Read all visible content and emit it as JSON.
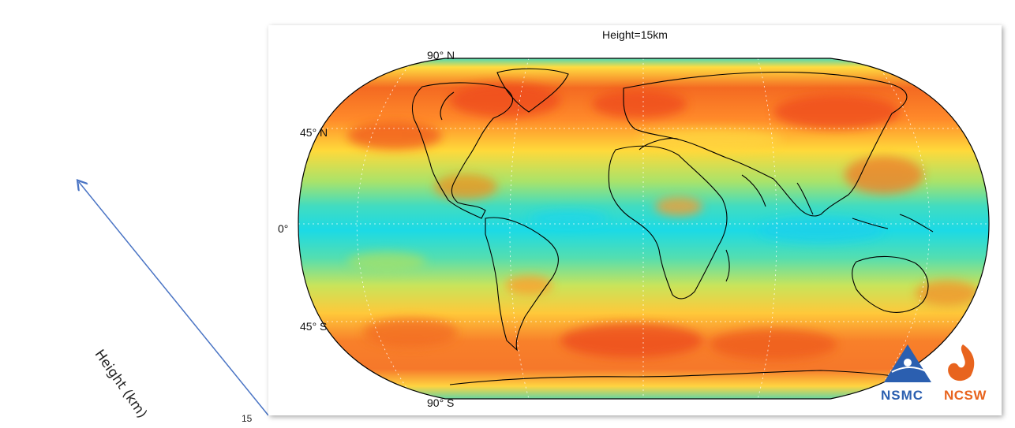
{
  "map": {
    "title": "Height=15km",
    "lat_labels": {
      "n90": "90° N",
      "n45": "45° N",
      "eq": "0°",
      "s45": "45° S",
      "s90": "90° S"
    }
  },
  "side_axis": {
    "label": "Height (km)",
    "tick": "15"
  },
  "logos": {
    "left": "NSMC",
    "right": "NCSW"
  },
  "colors": {
    "cold": "#19d8e4",
    "cool": "#6ee09a",
    "mid": "#ffe83c",
    "warm": "#ff9a2c",
    "hot": "#f04a1e",
    "arrow": "#4a74c4",
    "nsmc": "#2b5fb0",
    "ncsw": "#e8641e"
  }
}
